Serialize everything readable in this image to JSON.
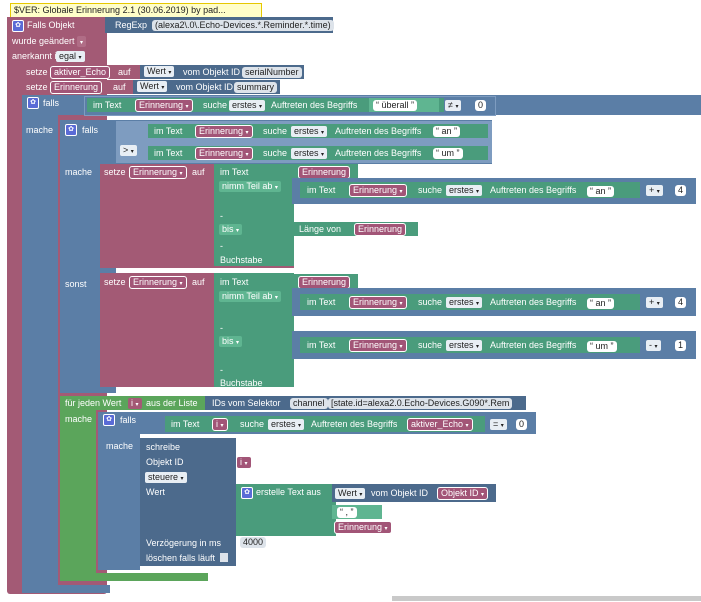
{
  "comment": "$VER: Globale Erinnerung 2.1 (30.06.2019) by pad...",
  "trigger": {
    "label": "Falls Objekt",
    "regexp": "RegExp",
    "pattern": "(alexa2\\.0\\.Echo-Devices.*.Reminder.*.time)",
    "was_changed": "wurde geändert",
    "ack_label": "anerkannt ist",
    "ack_value": "egal"
  },
  "set1": {
    "setze": "setze",
    "var": "aktiver_Echo",
    "auf": "auf",
    "wert": "Wert",
    "vom": "vom Objekt ID",
    "id": "serialNumber"
  },
  "set2": {
    "setze": "setze",
    "var": "Erinnerung",
    "auf": "auf",
    "wert": "Wert",
    "vom": "vom Objekt ID",
    "id": "summary"
  },
  "if1": {
    "falls": "falls",
    "imtext": "im Text",
    "var": "Erinnerung",
    "sucheop": "suche",
    "which": "erstes",
    "auftreten": "Auftreten des Begriffs",
    "term": "überall",
    "op": "≠",
    "num": "0",
    "mache": "mache"
  },
  "if2": {
    "falls": "falls",
    "imtext": "im Text",
    "var": "Erinnerung",
    "suche": "suche",
    "which": "erstes",
    "auftreten": "Auftreten des Begriffs",
    "term1": "an",
    "op2": ">",
    "term2": "um",
    "mache": "mache",
    "sonst": "sonst"
  },
  "sub1": {
    "setze": "setze",
    "var": "Erinnerung",
    "auf": "auf",
    "imtext": "im Text",
    "var2": "Erinnerung",
    "nimm": "nimm Teil ab",
    "imtext2": "im Text",
    "var3": "Erinnerung",
    "suche": "suche",
    "which": "erstes",
    "auftreten": "Auftreten des Begriffs",
    "term": "an",
    "plus": "+",
    "num": "4",
    "bis": "bis",
    "laenge": "Länge von",
    "var4": "Erinnerung",
    "buchstabe": "Buchstabe"
  },
  "sub2": {
    "setze": "setze",
    "var": "Erinnerung",
    "auf": "auf",
    "imtext": "im Text",
    "var2": "Erinnerung",
    "nimm": "nimm Teil ab",
    "imtext2": "im Text",
    "var3": "Erinnerung",
    "suche": "suche",
    "which": "erstes",
    "auftreten": "Auftreten des Begriffs",
    "term": "an",
    "plus": "+",
    "num": "4",
    "bis": "bis",
    "imtext3": "im Text",
    "var5": "Erinnerung",
    "term2": "um",
    "minus": "-",
    "num2": "1",
    "buchstabe": "Buchstabe"
  },
  "loop": {
    "label": "für jeden Wert",
    "var": "i",
    "aus": "aus der Liste",
    "ids": "IDs vom Selektor",
    "sel1": "channel",
    "sel2": "[state.id=alexa2.0.Echo-Devices.G090*.Rem",
    "mache": "mache"
  },
  "if3": {
    "falls": "falls",
    "imtext": "im Text",
    "var": "i",
    "suche": "suche",
    "which": "erstes",
    "auftreten": "Auftreten des Begriffs",
    "var2": "aktiver_Echo",
    "op": "=",
    "num": "0",
    "mache": "mache"
  },
  "write": {
    "schreibe": "schreibe",
    "objid": "Objekt ID",
    "var": "i",
    "steuere": "steuere",
    "wert": "Wert",
    "create": "erstelle Text aus",
    "wert2": "Wert",
    "vom": "vom Objekt ID",
    "objidvar": "Objekt ID",
    "sep": ",",
    "var2": "Erinnerung",
    "delay": "Verzögerung in ms",
    "delay_val": "4000",
    "clear": "löschen falls läuft"
  }
}
